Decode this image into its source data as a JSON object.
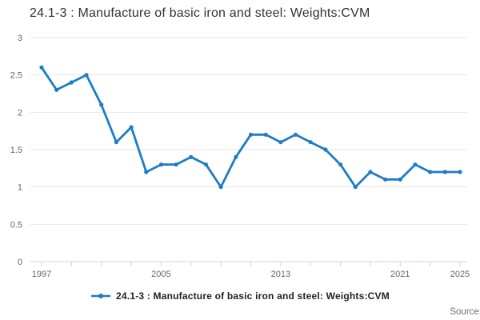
{
  "header": {
    "title": "24.1-3 : Manufacture of basic iron and steel: Weights:CVM"
  },
  "legend": {
    "items": [
      {
        "label": "24.1-3 : Manufacture of basic iron and steel: Weights:CVM"
      }
    ]
  },
  "footer": {
    "source_label": "Source:"
  },
  "colors": {
    "line": "#1d7dc4",
    "grid": "#e6e6e6",
    "axis": "#c9d4e4",
    "tick_label": "#666666",
    "title": "#333333",
    "legend_text": "#222222",
    "source": "#707070"
  },
  "chart_data": {
    "type": "line",
    "title": "24.1-3 : Manufacture of basic iron and steel: Weights:CVM",
    "xlabel": "",
    "ylabel": "",
    "x": [
      1997,
      1998,
      1999,
      2000,
      2001,
      2002,
      2003,
      2004,
      2005,
      2006,
      2007,
      2008,
      2009,
      2010,
      2011,
      2012,
      2013,
      2014,
      2015,
      2016,
      2017,
      2018,
      2019,
      2020,
      2021,
      2022,
      2023,
      2024,
      2025
    ],
    "series": [
      {
        "name": "24.1-3 : Manufacture of basic iron and steel: Weights:CVM",
        "values": [
          2.6,
          2.3,
          2.4,
          2.5,
          2.1,
          1.6,
          1.8,
          1.2,
          1.3,
          1.3,
          1.4,
          1.3,
          1.0,
          1.4,
          1.7,
          1.7,
          1.6,
          1.7,
          1.6,
          1.5,
          1.3,
          1.0,
          1.2,
          1.1,
          1.1,
          1.3,
          1.2,
          1.2,
          1.2
        ]
      }
    ],
    "xlim": [
      1997,
      2025
    ],
    "ylim": [
      0,
      3
    ],
    "y_ticks": [
      0,
      0.5,
      1,
      1.5,
      2,
      2.5,
      3
    ],
    "x_tick_labels": [
      1997,
      2005,
      2013,
      2021,
      2025
    ],
    "x_minor_tick_step_years": 2,
    "grid": "horizontal",
    "markers": true,
    "legend_position": "bottom"
  }
}
